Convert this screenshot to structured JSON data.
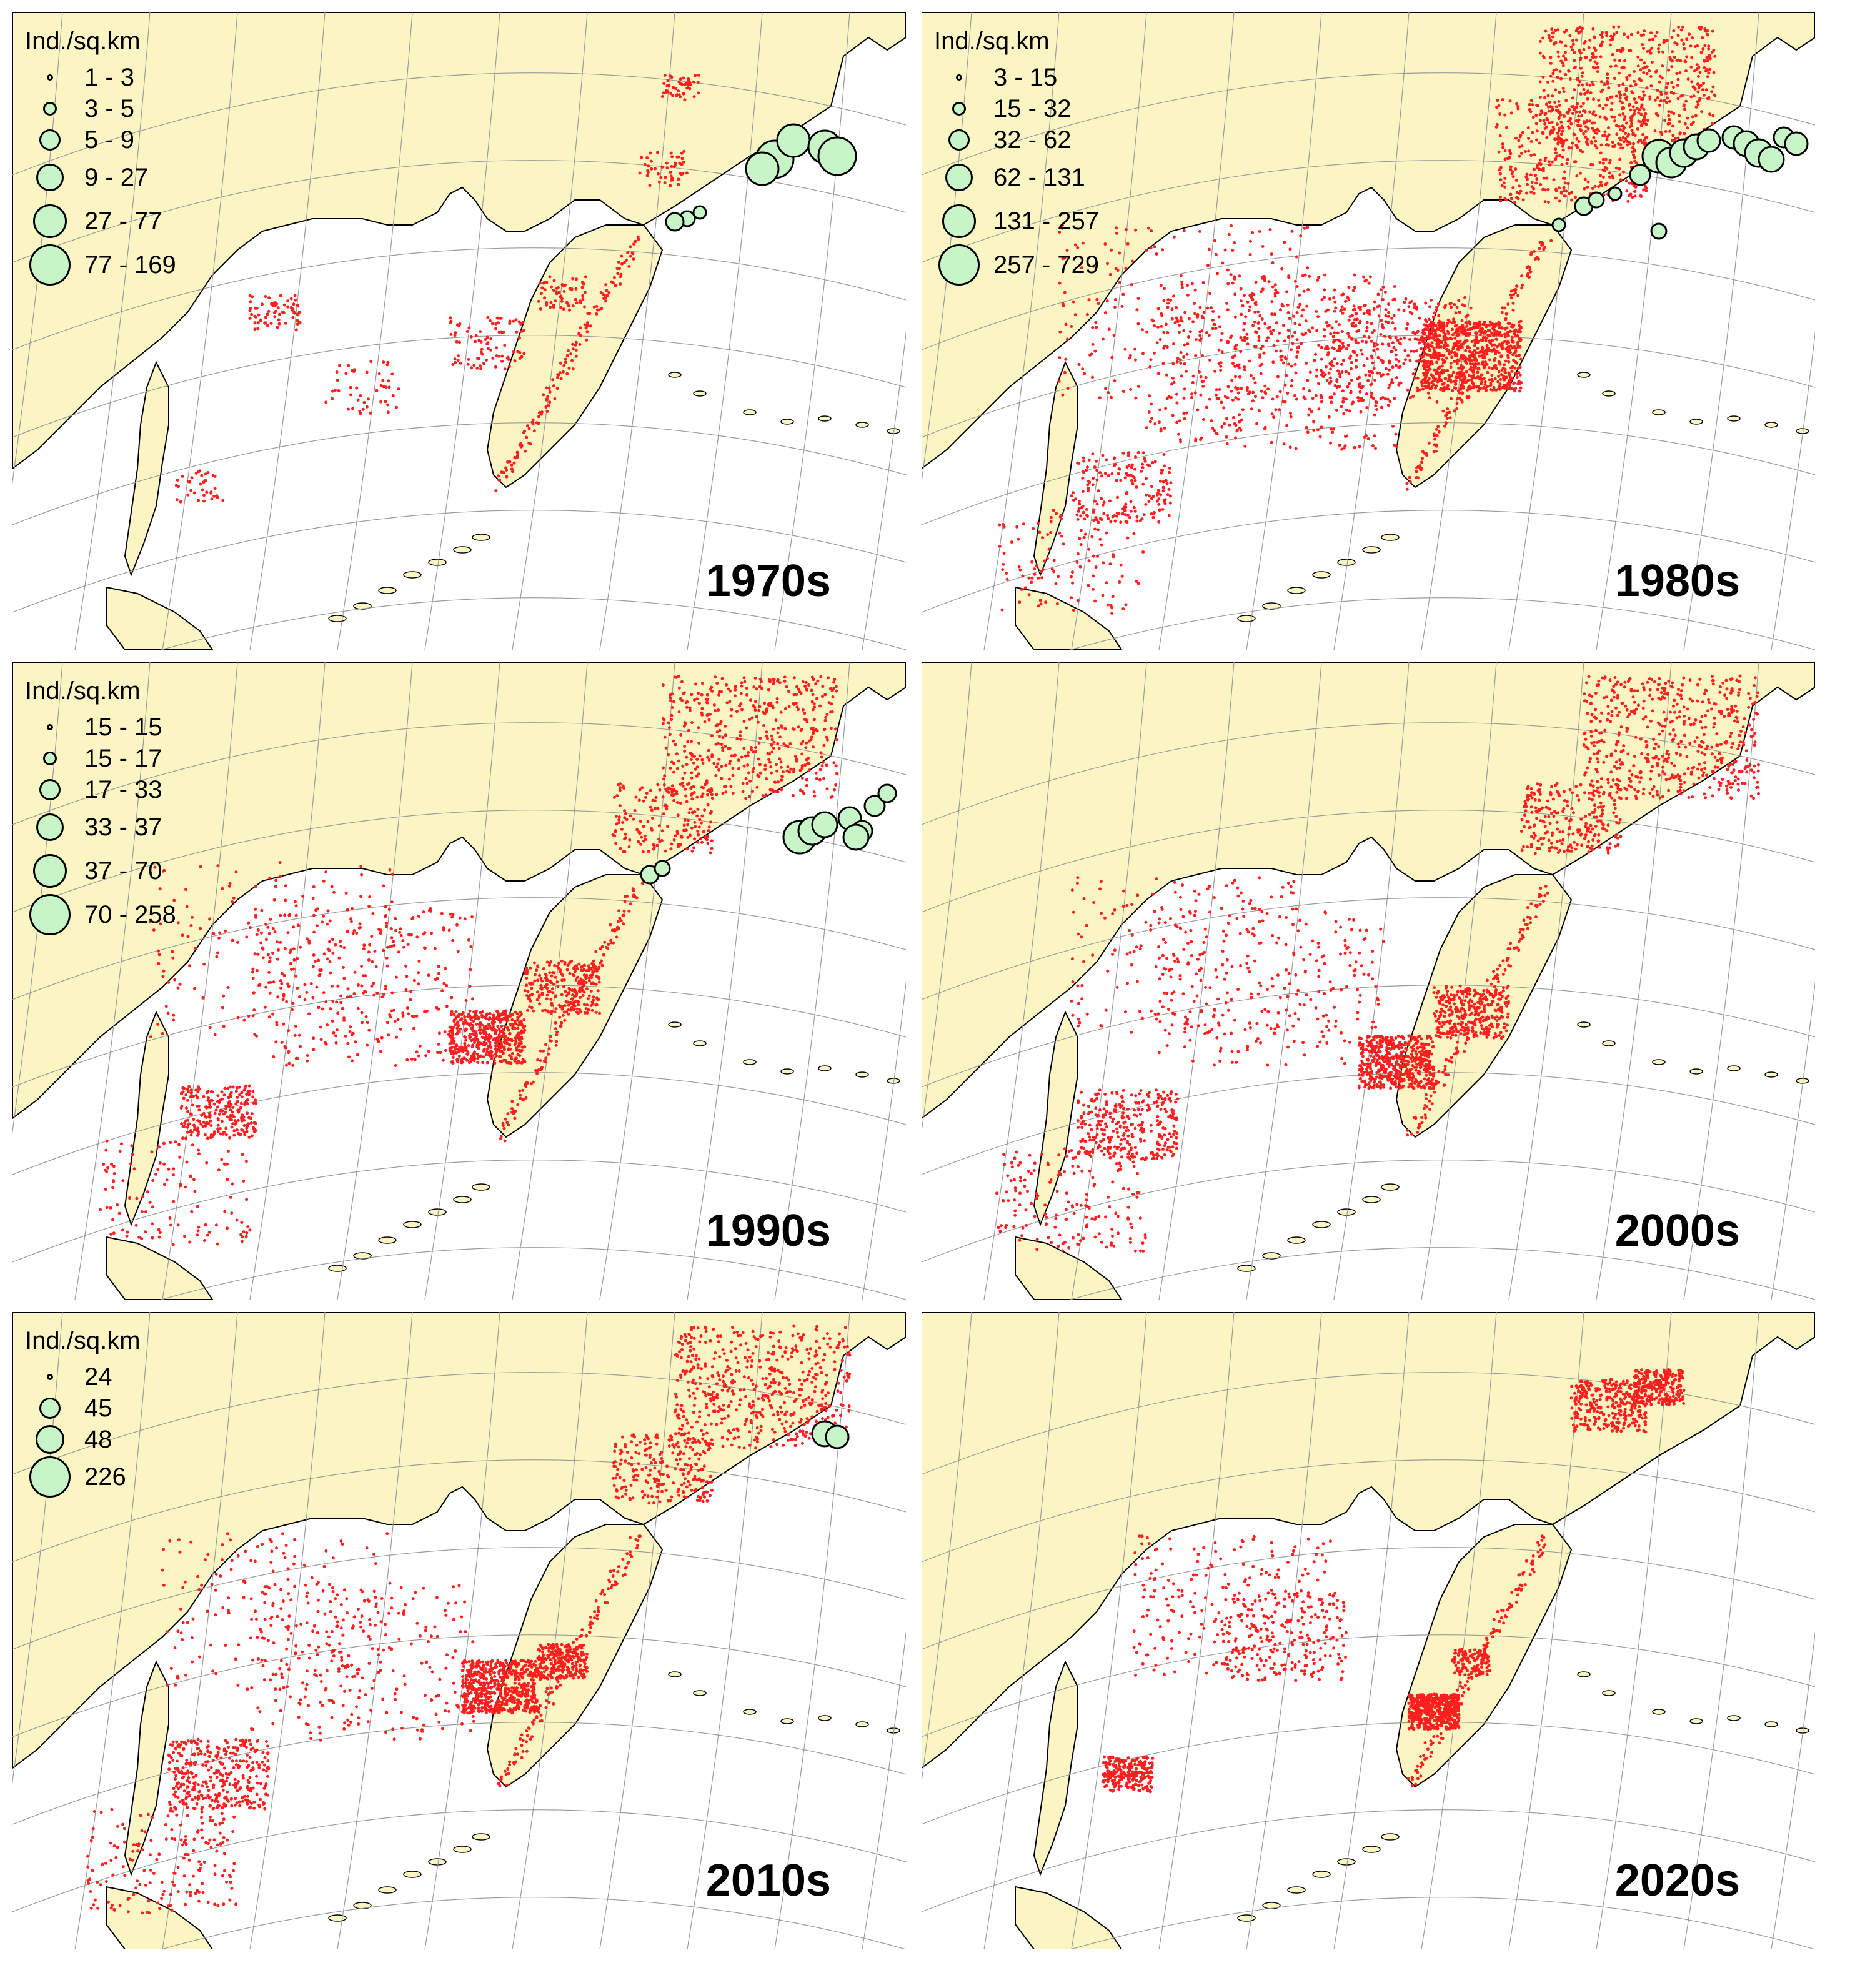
{
  "panels": [
    {
      "decade": "1970s",
      "legend": {
        "title": "Ind./sq.km",
        "classes": [
          {
            "label": "1 - 3",
            "size": 10
          },
          {
            "label": "3 - 5",
            "size": 22
          },
          {
            "label": "5 - 9",
            "size": 34
          },
          {
            "label": "9 - 27",
            "size": 44
          },
          {
            "label": "27 - 77",
            "size": 54
          },
          {
            "label": "77 - 169",
            "size": 66
          }
        ]
      }
    },
    {
      "decade": "1980s",
      "legend": {
        "title": "Ind./sq.km",
        "classes": [
          {
            "label": "3 - 15",
            "size": 10
          },
          {
            "label": "15 - 32",
            "size": 22
          },
          {
            "label": "32 - 62",
            "size": 34
          },
          {
            "label": "62 - 131",
            "size": 44
          },
          {
            "label": "131 - 257",
            "size": 54
          },
          {
            "label": "257 - 729",
            "size": 66
          }
        ]
      }
    },
    {
      "decade": "1990s",
      "legend": {
        "title": "Ind./sq.km",
        "classes": [
          {
            "label": "15 - 15",
            "size": 10
          },
          {
            "label": "15 - 17",
            "size": 22
          },
          {
            "label": "17 - 33",
            "size": 34
          },
          {
            "label": "33 - 37",
            "size": 44
          },
          {
            "label": "37 - 70",
            "size": 54
          },
          {
            "label": "70 - 258",
            "size": 66
          }
        ]
      }
    },
    {
      "decade": "2000s",
      "legend": null
    },
    {
      "decade": "2010s",
      "legend": {
        "title": "Ind./sq.km",
        "classes": [
          {
            "label": "24",
            "size": 10
          },
          {
            "label": "45",
            "size": 34
          },
          {
            "label": "48",
            "size": 46
          },
          {
            "label": "226",
            "size": 66
          }
        ]
      }
    },
    {
      "decade": "2020s",
      "legend": null
    }
  ],
  "colors": {
    "land": "#fbf5c3",
    "sea": "#ffffff",
    "station": "#ff1f1f",
    "catch_fill": "#c8f5c8",
    "graticule": "#9a9a9a"
  }
}
